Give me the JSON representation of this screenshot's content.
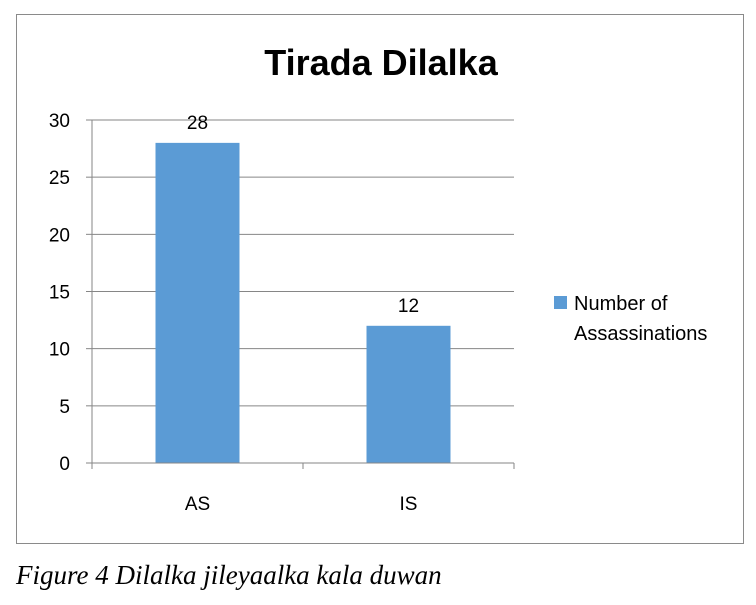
{
  "chart_data": {
    "type": "bar",
    "title": "Tirada Dilalka",
    "categories": [
      "AS",
      "IS"
    ],
    "series": [
      {
        "name": "Number of Assassinations",
        "values": [
          28,
          12
        ]
      }
    ],
    "data_labels": [
      "28",
      "12"
    ],
    "ylim": [
      0,
      30
    ],
    "yticks": [
      "0",
      "5",
      "10",
      "15",
      "20",
      "25",
      "30"
    ],
    "grid": true,
    "legend_position": "right",
    "legend_lines": [
      "Number of",
      "Assassinations"
    ],
    "bar_color": "#5b9bd5",
    "grid_color": "#868686"
  },
  "caption": "Figure 4 Dilalka jileyaalka kala duwan"
}
